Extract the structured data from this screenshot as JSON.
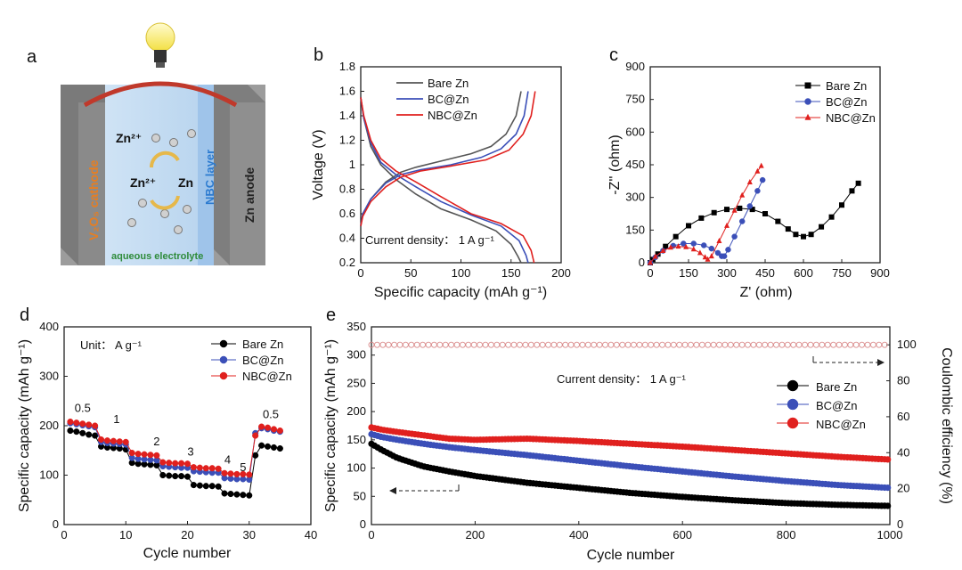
{
  "colors": {
    "bare": "#000000",
    "bc": "#3b4fb8",
    "nbc": "#e0201e"
  },
  "panel_a": {
    "label": "a",
    "cathode_label": "V₂O₅ cathode",
    "anode_label": "Zn anode",
    "layer_label": "NBC layer",
    "electrolyte_label": "aqueous electrolyte",
    "ion_top": "Zn²⁺",
    "ion_mid": "Zn²⁺",
    "metal": "Zn",
    "icons": [
      "light-bulb-icon",
      "cycle-arrows-icon"
    ]
  },
  "chart_data": [
    {
      "id": "b",
      "type": "line",
      "panel_label": "b",
      "xlabel": "Specific capacity (mAh g⁻¹)",
      "ylabel": "Voltage (V)",
      "xlim": [
        0,
        200
      ],
      "ylim": [
        0.2,
        1.8
      ],
      "xticks": [
        0,
        50,
        100,
        150,
        200
      ],
      "yticks": [
        0.2,
        0.4,
        0.6,
        0.8,
        1.0,
        1.2,
        1.4,
        1.6,
        1.8
      ],
      "legend": "top-left",
      "annotation": "Current density： 1 A g⁻¹",
      "series": [
        {
          "name": "Bare Zn",
          "color": "#555555",
          "charge": [
            [
              0,
              0.5
            ],
            [
              2,
              0.6
            ],
            [
              10,
              0.72
            ],
            [
              25,
              0.86
            ],
            [
              40,
              0.94
            ],
            [
              55,
              0.98
            ],
            [
              80,
              1.03
            ],
            [
              110,
              1.09
            ],
            [
              130,
              1.15
            ],
            [
              145,
              1.25
            ],
            [
              155,
              1.4
            ],
            [
              160,
              1.6
            ]
          ],
          "discharge": [
            [
              0,
              1.55
            ],
            [
              3,
              1.38
            ],
            [
              10,
              1.15
            ],
            [
              20,
              1.0
            ],
            [
              35,
              0.88
            ],
            [
              55,
              0.76
            ],
            [
              80,
              0.64
            ],
            [
              110,
              0.55
            ],
            [
              135,
              0.46
            ],
            [
              150,
              0.35
            ],
            [
              157,
              0.25
            ],
            [
              160,
              0.2
            ]
          ]
        },
        {
          "name": "BC@Zn",
          "color": "#3b4fb8",
          "charge": [
            [
              0,
              0.5
            ],
            [
              2,
              0.6
            ],
            [
              10,
              0.72
            ],
            [
              25,
              0.85
            ],
            [
              40,
              0.92
            ],
            [
              60,
              0.96
            ],
            [
              90,
              1.0
            ],
            [
              120,
              1.06
            ],
            [
              140,
              1.13
            ],
            [
              155,
              1.25
            ],
            [
              163,
              1.4
            ],
            [
              167,
              1.6
            ]
          ],
          "discharge": [
            [
              0,
              1.55
            ],
            [
              3,
              1.38
            ],
            [
              10,
              1.18
            ],
            [
              20,
              1.02
            ],
            [
              35,
              0.92
            ],
            [
              55,
              0.82
            ],
            [
              80,
              0.7
            ],
            [
              110,
              0.59
            ],
            [
              140,
              0.5
            ],
            [
              158,
              0.38
            ],
            [
              165,
              0.26
            ],
            [
              167,
              0.2
            ]
          ]
        },
        {
          "name": "NBC@Zn",
          "color": "#e0201e",
          "charge": [
            [
              0,
              0.5
            ],
            [
              2,
              0.58
            ],
            [
              10,
              0.7
            ],
            [
              25,
              0.82
            ],
            [
              40,
              0.9
            ],
            [
              60,
              0.95
            ],
            [
              90,
              0.99
            ],
            [
              125,
              1.04
            ],
            [
              148,
              1.12
            ],
            [
              162,
              1.25
            ],
            [
              170,
              1.4
            ],
            [
              174,
              1.6
            ]
          ],
          "discharge": [
            [
              0,
              1.55
            ],
            [
              3,
              1.4
            ],
            [
              10,
              1.2
            ],
            [
              20,
              1.05
            ],
            [
              35,
              0.95
            ],
            [
              55,
              0.86
            ],
            [
              80,
              0.74
            ],
            [
              110,
              0.6
            ],
            [
              140,
              0.52
            ],
            [
              162,
              0.42
            ],
            [
              170,
              0.3
            ],
            [
              173,
              0.2
            ]
          ]
        }
      ]
    },
    {
      "id": "c",
      "type": "scatter",
      "panel_label": "c",
      "xlabel": "Z' (ohm)",
      "ylabel": "-Z'' (ohm)",
      "xlim": [
        0,
        900
      ],
      "ylim": [
        0,
        900
      ],
      "xticks": [
        0,
        150,
        300,
        450,
        600,
        750,
        900
      ],
      "yticks": [
        0,
        150,
        300,
        450,
        600,
        750,
        900
      ],
      "legend": "top-right",
      "series": [
        {
          "name": "Bare Zn",
          "marker": "square",
          "color": "#000000",
          "points": [
            [
              0,
              0
            ],
            [
              10,
              15
            ],
            [
              30,
              40
            ],
            [
              60,
              75
            ],
            [
              100,
              120
            ],
            [
              150,
              170
            ],
            [
              200,
              205
            ],
            [
              250,
              230
            ],
            [
              300,
              245
            ],
            [
              350,
              250
            ],
            [
              400,
              245
            ],
            [
              450,
              225
            ],
            [
              500,
              190
            ],
            [
              540,
              155
            ],
            [
              570,
              130
            ],
            [
              600,
              120
            ],
            [
              630,
              130
            ],
            [
              670,
              165
            ],
            [
              710,
              210
            ],
            [
              750,
              265
            ],
            [
              790,
              330
            ],
            [
              815,
              365
            ]
          ]
        },
        {
          "name": "BC@Zn",
          "marker": "circle",
          "color": "#3b4fb8",
          "points": [
            [
              0,
              0
            ],
            [
              20,
              25
            ],
            [
              50,
              55
            ],
            [
              90,
              78
            ],
            [
              130,
              88
            ],
            [
              170,
              88
            ],
            [
              210,
              80
            ],
            [
              240,
              65
            ],
            [
              265,
              45
            ],
            [
              280,
              30
            ],
            [
              290,
              30
            ],
            [
              305,
              60
            ],
            [
              330,
              120
            ],
            [
              360,
              190
            ],
            [
              390,
              260
            ],
            [
              420,
              330
            ],
            [
              440,
              380
            ]
          ]
        },
        {
          "name": "NBC@Zn",
          "marker": "triangle",
          "color": "#e0201e",
          "points": [
            [
              0,
              0
            ],
            [
              20,
              28
            ],
            [
              50,
              55
            ],
            [
              80,
              70
            ],
            [
              110,
              75
            ],
            [
              140,
              72
            ],
            [
              170,
              62
            ],
            [
              195,
              45
            ],
            [
              215,
              25
            ],
            [
              225,
              15
            ],
            [
              240,
              30
            ],
            [
              270,
              100
            ],
            [
              300,
              170
            ],
            [
              330,
              240
            ],
            [
              360,
              310
            ],
            [
              390,
              370
            ],
            [
              420,
              420
            ],
            [
              435,
              445
            ]
          ]
        }
      ]
    },
    {
      "id": "d",
      "type": "scatter",
      "panel_label": "d",
      "xlabel": "Cycle number",
      "ylabel": "Specific capacity (mAh g⁻¹)",
      "xlim": [
        0,
        40
      ],
      "ylim": [
        0,
        400
      ],
      "xticks": [
        0,
        10,
        20,
        30,
        40
      ],
      "yticks": [
        0,
        100,
        200,
        300,
        400
      ],
      "legend": "top-right",
      "unit_label": "Unit： A g⁻¹",
      "rate_labels": [
        {
          "text": "0.5",
          "x": 3,
          "y": 228
        },
        {
          "text": "1",
          "x": 8.5,
          "y": 205
        },
        {
          "text": "2",
          "x": 15,
          "y": 160
        },
        {
          "text": "3",
          "x": 20.5,
          "y": 140
        },
        {
          "text": "4",
          "x": 26.5,
          "y": 123
        },
        {
          "text": "5",
          "x": 29,
          "y": 108
        },
        {
          "text": "0.5",
          "x": 33.5,
          "y": 215
        }
      ],
      "series": [
        {
          "name": "Bare Zn",
          "marker": "circle",
          "color": "#000000",
          "values": [
            190,
            188,
            185,
            182,
            180,
            158,
            156,
            155,
            154,
            152,
            125,
            123,
            122,
            121,
            120,
            100,
            99,
            98,
            98,
            97,
            80,
            79,
            78,
            78,
            77,
            63,
            62,
            61,
            60,
            59,
            140,
            160,
            158,
            156,
            154
          ]
        },
        {
          "name": "BC@Zn",
          "marker": "circle",
          "color": "#3b4fb8",
          "values": [
            205,
            203,
            201,
            199,
            197,
            167,
            165,
            164,
            163,
            162,
            135,
            133,
            132,
            131,
            130,
            118,
            117,
            116,
            115,
            115,
            108,
            107,
            106,
            105,
            105,
            94,
            93,
            92,
            92,
            91,
            185,
            195,
            193,
            190,
            188
          ]
        },
        {
          "name": "NBC@Zn",
          "marker": "circle",
          "color": "#e0201e",
          "values": [
            208,
            206,
            204,
            202,
            200,
            172,
            170,
            169,
            168,
            167,
            145,
            143,
            142,
            141,
            140,
            126,
            125,
            124,
            124,
            123,
            116,
            115,
            114,
            114,
            113,
            104,
            103,
            102,
            102,
            101,
            180,
            198,
            196,
            193,
            190
          ]
        }
      ]
    },
    {
      "id": "e",
      "type": "scatter",
      "panel_label": "e",
      "xlabel": "Cycle number",
      "ylabel": "Specific capacity (mAh g⁻¹)",
      "y2label": "Coulombic efficiency (%)",
      "xlim": [
        0,
        1000
      ],
      "ylim": [
        0,
        350
      ],
      "y2lim": [
        0,
        110
      ],
      "xticks": [
        0,
        200,
        400,
        600,
        800,
        1000
      ],
      "yticks": [
        0,
        50,
        100,
        150,
        200,
        250,
        300,
        350
      ],
      "y2ticks": [
        0,
        20,
        40,
        60,
        80,
        100
      ],
      "legend": "right",
      "annotation": "Current density： 1 A g⁻¹",
      "efficiency": 100,
      "series": [
        {
          "name": "Bare Zn",
          "marker": "circle",
          "color": "#000000",
          "x": [
            0,
            20,
            50,
            100,
            150,
            200,
            300,
            400,
            500,
            600,
            700,
            800,
            900,
            1000
          ],
          "values": [
            143,
            132,
            118,
            103,
            94,
            86,
            74,
            65,
            56,
            49,
            43,
            38,
            35,
            33
          ]
        },
        {
          "name": "BC@Zn",
          "marker": "circle",
          "color": "#3b4fb8",
          "x": [
            0,
            20,
            50,
            100,
            150,
            200,
            300,
            400,
            500,
            600,
            700,
            800,
            900,
            1000
          ],
          "values": [
            160,
            155,
            150,
            143,
            137,
            132,
            123,
            113,
            103,
            94,
            85,
            77,
            70,
            65
          ]
        },
        {
          "name": "NBC@Zn",
          "marker": "circle",
          "color": "#e0201e",
          "x": [
            0,
            20,
            50,
            100,
            150,
            200,
            300,
            400,
            500,
            600,
            700,
            800,
            900,
            1000
          ],
          "values": [
            172,
            168,
            164,
            158,
            152,
            150,
            152,
            148,
            143,
            138,
            132,
            126,
            120,
            115
          ]
        }
      ]
    }
  ]
}
